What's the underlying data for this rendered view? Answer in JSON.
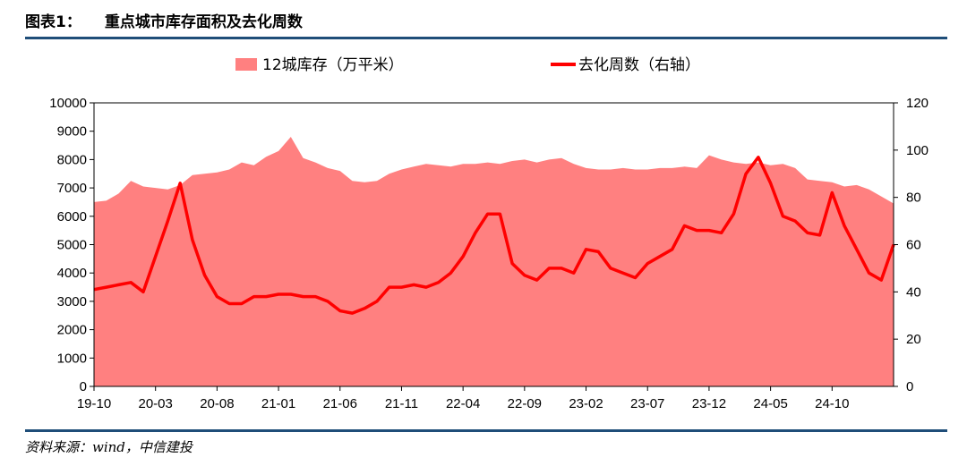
{
  "title": {
    "figure_no": "图表1：",
    "text": "重点城市库存面积及去化周数"
  },
  "source": "资料来源：wind，中信建投",
  "colors": {
    "area": "#ff8080",
    "line": "#ff0000",
    "rule": "#1f4e79"
  },
  "chart_data": {
    "type": "area+line",
    "legend_position": "top",
    "grid": false,
    "x_tick_labels": [
      "19-10",
      "20-03",
      "20-08",
      "21-01",
      "21-06",
      "21-11",
      "22-04",
      "22-09",
      "23-02",
      "23-07",
      "23-12",
      "24-05",
      "24-10"
    ],
    "y_left": {
      "ticks": [
        "0",
        "1000",
        "2000",
        "3000",
        "4000",
        "5000",
        "6000",
        "7000",
        "8000",
        "9000",
        "10000"
      ],
      "range": [
        0,
        10000
      ]
    },
    "y_right": {
      "ticks": [
        "0",
        "20",
        "40",
        "60",
        "80",
        "100",
        "120"
      ],
      "range": [
        0,
        120
      ]
    },
    "series": [
      {
        "name": "12城库存（万平米）",
        "kind": "area",
        "axis": "left",
        "points": [
          [
            "19-10",
            6500
          ],
          [
            "19-11",
            6550
          ],
          [
            "19-12",
            6800
          ],
          [
            "20-01",
            7250
          ],
          [
            "20-02",
            7050
          ],
          [
            "20-03",
            7000
          ],
          [
            "20-04",
            6950
          ],
          [
            "20-05",
            7100
          ],
          [
            "20-06",
            7450
          ],
          [
            "20-07",
            7500
          ],
          [
            "20-08",
            7550
          ],
          [
            "20-09",
            7650
          ],
          [
            "20-10",
            7900
          ],
          [
            "20-11",
            7800
          ],
          [
            "20-12",
            8100
          ],
          [
            "21-01",
            8300
          ],
          [
            "21-02",
            8800
          ],
          [
            "21-03",
            8050
          ],
          [
            "21-04",
            7900
          ],
          [
            "21-05",
            7700
          ],
          [
            "21-06",
            7600
          ],
          [
            "21-07",
            7250
          ],
          [
            "21-08",
            7200
          ],
          [
            "21-09",
            7250
          ],
          [
            "21-10",
            7500
          ],
          [
            "21-11",
            7650
          ],
          [
            "21-12",
            7750
          ],
          [
            "22-01",
            7850
          ],
          [
            "22-02",
            7800
          ],
          [
            "22-03",
            7750
          ],
          [
            "22-04",
            7850
          ],
          [
            "22-05",
            7850
          ],
          [
            "22-06",
            7900
          ],
          [
            "22-07",
            7850
          ],
          [
            "22-08",
            7950
          ],
          [
            "22-09",
            8000
          ],
          [
            "22-10",
            7900
          ],
          [
            "22-11",
            8000
          ],
          [
            "22-12",
            8050
          ],
          [
            "23-01",
            7850
          ],
          [
            "23-02",
            7700
          ],
          [
            "23-03",
            7650
          ],
          [
            "23-04",
            7650
          ],
          [
            "23-05",
            7700
          ],
          [
            "23-06",
            7650
          ],
          [
            "23-07",
            7650
          ],
          [
            "23-08",
            7700
          ],
          [
            "23-09",
            7700
          ],
          [
            "23-10",
            7750
          ],
          [
            "23-11",
            7700
          ],
          [
            "23-12",
            8150
          ],
          [
            "24-01",
            8000
          ],
          [
            "24-02",
            7900
          ],
          [
            "24-03",
            7850
          ],
          [
            "24-04",
            7900
          ],
          [
            "24-05",
            7800
          ],
          [
            "24-06",
            7850
          ],
          [
            "24-07",
            7700
          ],
          [
            "24-08",
            7300
          ],
          [
            "24-09",
            7250
          ],
          [
            "24-10",
            7200
          ],
          [
            "24-11",
            7050
          ],
          [
            "24-12",
            7100
          ],
          [
            "25-01",
            6950
          ],
          [
            "25-02",
            6700
          ],
          [
            "25-03",
            6450
          ]
        ]
      },
      {
        "name": "去化周数（右轴）",
        "kind": "line",
        "axis": "right",
        "points": [
          [
            "19-10",
            41
          ],
          [
            "19-11",
            42
          ],
          [
            "19-12",
            43
          ],
          [
            "20-01",
            44
          ],
          [
            "20-02",
            40
          ],
          [
            "20-03",
            55
          ],
          [
            "20-04",
            70
          ],
          [
            "20-05",
            86
          ],
          [
            "20-06",
            62
          ],
          [
            "20-07",
            47
          ],
          [
            "20-08",
            38
          ],
          [
            "20-09",
            35
          ],
          [
            "20-10",
            35
          ],
          [
            "20-11",
            38
          ],
          [
            "20-12",
            38
          ],
          [
            "21-01",
            39
          ],
          [
            "21-02",
            39
          ],
          [
            "21-03",
            38
          ],
          [
            "21-04",
            38
          ],
          [
            "21-05",
            36
          ],
          [
            "21-06",
            32
          ],
          [
            "21-07",
            31
          ],
          [
            "21-08",
            33
          ],
          [
            "21-09",
            36
          ],
          [
            "21-10",
            42
          ],
          [
            "21-11",
            42
          ],
          [
            "21-12",
            43
          ],
          [
            "22-01",
            42
          ],
          [
            "22-02",
            44
          ],
          [
            "22-03",
            48
          ],
          [
            "22-04",
            55
          ],
          [
            "22-05",
            65
          ],
          [
            "22-06",
            73
          ],
          [
            "22-07",
            73
          ],
          [
            "22-08",
            52
          ],
          [
            "22-09",
            47
          ],
          [
            "22-10",
            45
          ],
          [
            "22-11",
            50
          ],
          [
            "22-12",
            50
          ],
          [
            "23-01",
            48
          ],
          [
            "23-02",
            58
          ],
          [
            "23-03",
            57
          ],
          [
            "23-04",
            50
          ],
          [
            "23-05",
            48
          ],
          [
            "23-06",
            46
          ],
          [
            "23-07",
            52
          ],
          [
            "23-08",
            55
          ],
          [
            "23-09",
            58
          ],
          [
            "23-10",
            68
          ],
          [
            "23-11",
            66
          ],
          [
            "23-12",
            66
          ],
          [
            "24-01",
            65
          ],
          [
            "24-02",
            73
          ],
          [
            "24-03",
            90
          ],
          [
            "24-04",
            97
          ],
          [
            "24-05",
            86
          ],
          [
            "24-06",
            72
          ],
          [
            "24-07",
            70
          ],
          [
            "24-08",
            65
          ],
          [
            "24-09",
            64
          ],
          [
            "24-10",
            82
          ],
          [
            "24-11",
            68
          ],
          [
            "24-12",
            58
          ],
          [
            "25-01",
            48
          ],
          [
            "25-02",
            45
          ],
          [
            "25-03",
            60
          ]
        ]
      }
    ]
  }
}
